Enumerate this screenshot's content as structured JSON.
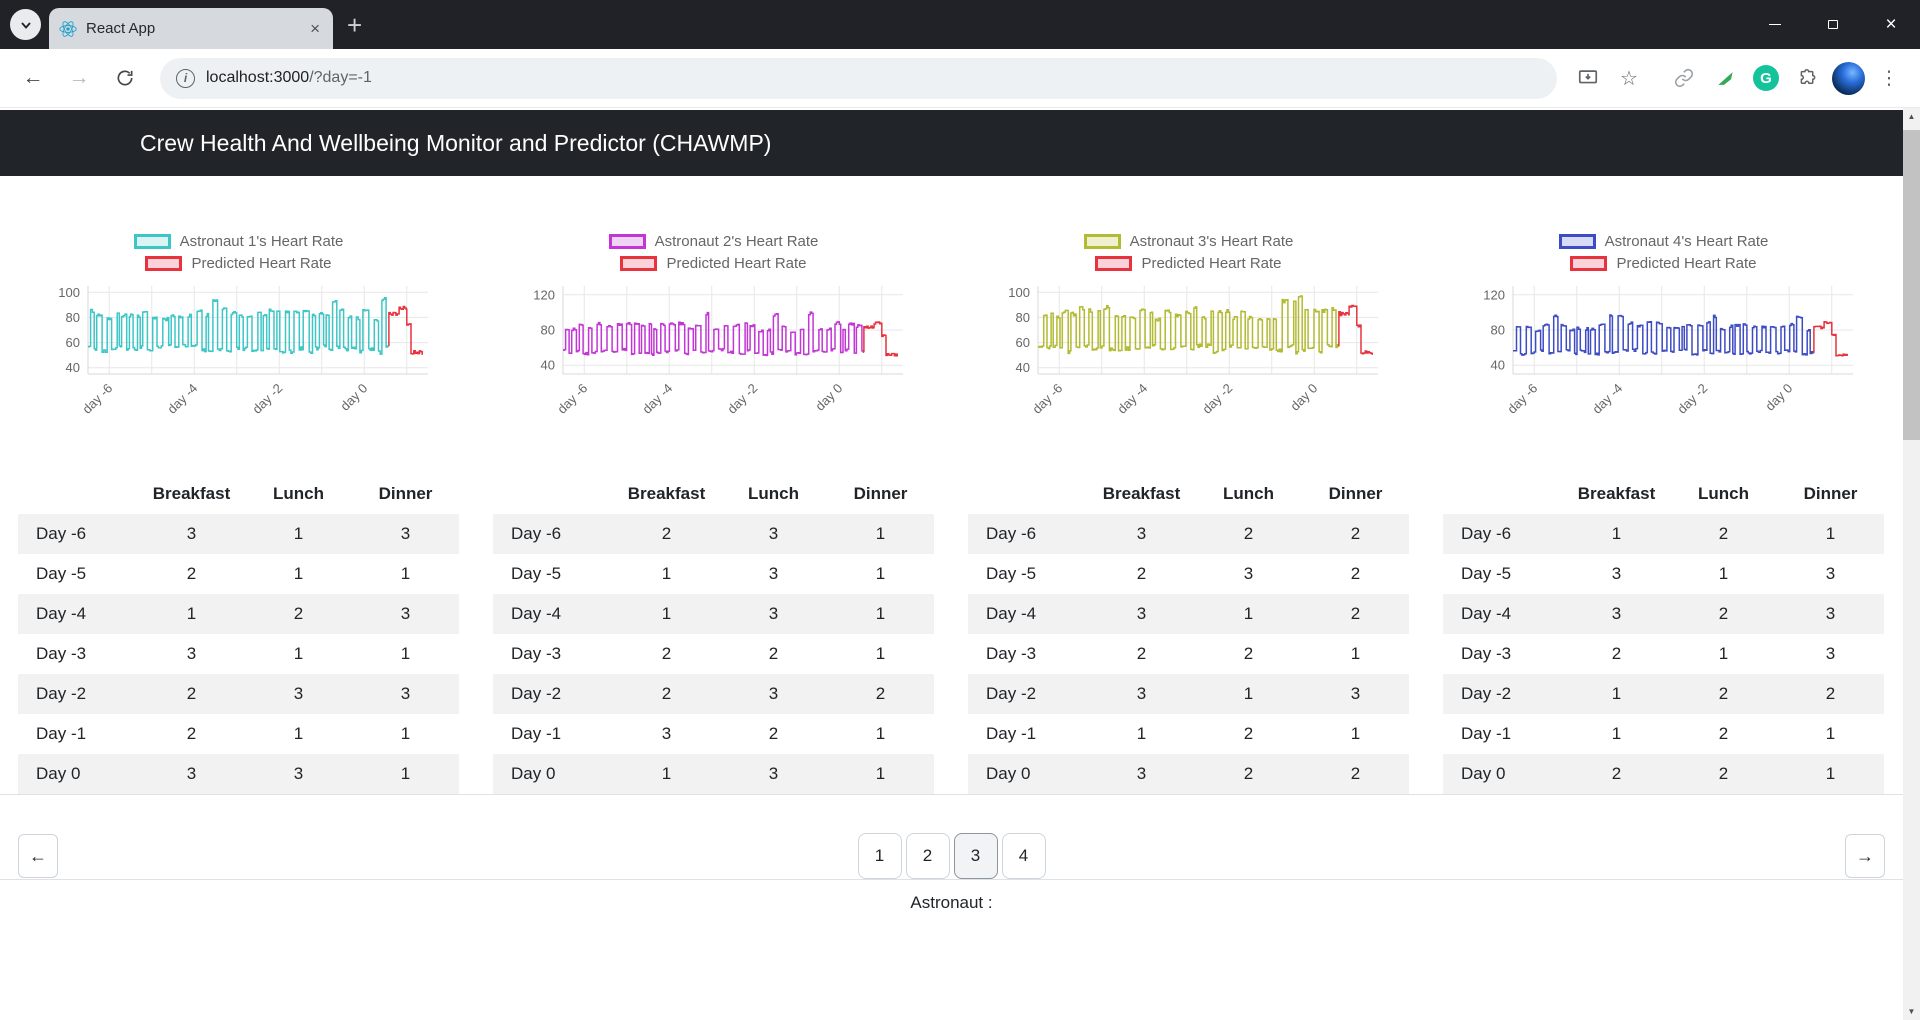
{
  "browser": {
    "tab_title": "React App",
    "url_host": "localhost:3000",
    "url_path": "/?day=-1",
    "icons": {
      "back": "←",
      "forward": "→",
      "new_tab": "+",
      "close_tab": "×",
      "close_window": "×",
      "info": "i",
      "star": "☆",
      "kebab": "⋮",
      "grammarly": "G"
    }
  },
  "header": {
    "title": "Crew Health And Wellbeing Monitor and Predictor (CHAWMP)"
  },
  "table": {
    "headers": [
      "Breakfast",
      "Lunch",
      "Dinner"
    ]
  },
  "chart_data": [
    {
      "type": "line",
      "series": [
        {
          "name": "Astronaut 1's Heart Rate",
          "color": "#3ec6c6",
          "fill": "#d9f4f2",
          "x_range": [
            -6.5,
            0.58
          ]
        },
        {
          "name": "Predicted Heart Rate",
          "color": "#e8323e",
          "fill": "#fad2da",
          "x_range": [
            0.58,
            1.38
          ]
        }
      ],
      "x_tick_labels": [
        "day -6",
        "day -4",
        "day -2",
        "day 0"
      ],
      "x_tick_days": [
        -6,
        -4,
        -2,
        0
      ],
      "x_range": [
        -6.5,
        1.5
      ],
      "y_ticks": [
        100,
        80,
        60,
        40
      ],
      "ylim": [
        35,
        105
      ],
      "grid": true,
      "legend_position": "top",
      "waveform": {
        "rest_level": 55,
        "active_level": 81,
        "spike_level": 96,
        "seed": 101
      }
    },
    {
      "type": "line",
      "series": [
        {
          "name": "Astronaut 2's Heart Rate",
          "color": "#c136d4",
          "fill": "#f0d4f6",
          "x_range": [
            -6.5,
            0.58
          ]
        },
        {
          "name": "Predicted Heart Rate",
          "color": "#e8323e",
          "fill": "#fad2da",
          "x_range": [
            0.58,
            1.38
          ]
        }
      ],
      "x_tick_labels": [
        "day -6",
        "day -4",
        "day -2",
        "day 0"
      ],
      "x_tick_days": [
        -6,
        -4,
        -2,
        0
      ],
      "x_range": [
        -6.5,
        1.5
      ],
      "y_ticks": [
        120,
        80,
        40
      ],
      "ylim": [
        30,
        130
      ],
      "grid": true,
      "legend_position": "top",
      "waveform": {
        "rest_level": 55,
        "active_level": 81,
        "spike_level": 96,
        "seed": 202
      }
    },
    {
      "type": "line",
      "series": [
        {
          "name": "Astronaut 3's Heart Rate",
          "color": "#b3ba33",
          "fill": "#eef0cf",
          "x_range": [
            -6.5,
            0.58
          ]
        },
        {
          "name": "Predicted Heart Rate",
          "color": "#e8323e",
          "fill": "#fad2da",
          "x_range": [
            0.58,
            1.38
          ]
        }
      ],
      "x_tick_labels": [
        "day -6",
        "day -4",
        "day -2",
        "day 0"
      ],
      "x_tick_days": [
        -6,
        -4,
        -2,
        0
      ],
      "x_range": [
        -6.5,
        1.5
      ],
      "y_ticks": [
        100,
        80,
        60,
        40
      ],
      "ylim": [
        35,
        105
      ],
      "grid": true,
      "legend_position": "top",
      "waveform": {
        "rest_level": 55,
        "active_level": 81,
        "spike_level": 96,
        "seed": 303
      }
    },
    {
      "type": "line",
      "series": [
        {
          "name": "Astronaut 4's Heart Rate",
          "color": "#3d4cc4",
          "fill": "#d8dbf5",
          "x_range": [
            -6.5,
            0.58
          ]
        },
        {
          "name": "Predicted Heart Rate",
          "color": "#e8323e",
          "fill": "#fad2da",
          "x_range": [
            0.58,
            1.38
          ]
        }
      ],
      "x_tick_labels": [
        "day -6",
        "day -4",
        "day -2",
        "day 0"
      ],
      "x_tick_days": [
        -6,
        -4,
        -2,
        0
      ],
      "x_range": [
        -6.5,
        1.5
      ],
      "y_ticks": [
        120,
        80,
        40
      ],
      "ylim": [
        30,
        130
      ],
      "grid": true,
      "legend_position": "top",
      "waveform": {
        "rest_level": 55,
        "active_level": 81,
        "spike_level": 96,
        "seed": 404
      }
    }
  ],
  "astronauts": [
    {
      "rows": [
        {
          "day": "Day -6",
          "meals": [
            3,
            1,
            3
          ]
        },
        {
          "day": "Day -5",
          "meals": [
            2,
            1,
            1
          ]
        },
        {
          "day": "Day -4",
          "meals": [
            1,
            2,
            3
          ]
        },
        {
          "day": "Day -3",
          "meals": [
            3,
            1,
            1
          ]
        },
        {
          "day": "Day -2",
          "meals": [
            2,
            3,
            3
          ]
        },
        {
          "day": "Day -1",
          "meals": [
            2,
            1,
            1
          ]
        },
        {
          "day": "Day 0",
          "meals": [
            3,
            3,
            1
          ]
        }
      ]
    },
    {
      "rows": [
        {
          "day": "Day -6",
          "meals": [
            2,
            3,
            1
          ]
        },
        {
          "day": "Day -5",
          "meals": [
            1,
            3,
            1
          ]
        },
        {
          "day": "Day -4",
          "meals": [
            1,
            3,
            1
          ]
        },
        {
          "day": "Day -3",
          "meals": [
            2,
            2,
            1
          ]
        },
        {
          "day": "Day -2",
          "meals": [
            2,
            3,
            2
          ]
        },
        {
          "day": "Day -1",
          "meals": [
            3,
            2,
            1
          ]
        },
        {
          "day": "Day 0",
          "meals": [
            1,
            3,
            1
          ]
        }
      ]
    },
    {
      "rows": [
        {
          "day": "Day -6",
          "meals": [
            3,
            2,
            2
          ]
        },
        {
          "day": "Day -5",
          "meals": [
            2,
            3,
            2
          ]
        },
        {
          "day": "Day -4",
          "meals": [
            3,
            1,
            2
          ]
        },
        {
          "day": "Day -3",
          "meals": [
            2,
            2,
            1
          ]
        },
        {
          "day": "Day -2",
          "meals": [
            3,
            1,
            3
          ]
        },
        {
          "day": "Day -1",
          "meals": [
            1,
            2,
            1
          ]
        },
        {
          "day": "Day 0",
          "meals": [
            3,
            2,
            2
          ]
        }
      ]
    },
    {
      "rows": [
        {
          "day": "Day -6",
          "meals": [
            1,
            2,
            1
          ]
        },
        {
          "day": "Day -5",
          "meals": [
            3,
            1,
            3
          ]
        },
        {
          "day": "Day -4",
          "meals": [
            3,
            2,
            3
          ]
        },
        {
          "day": "Day -3",
          "meals": [
            2,
            1,
            3
          ]
        },
        {
          "day": "Day -2",
          "meals": [
            1,
            2,
            2
          ]
        },
        {
          "day": "Day -1",
          "meals": [
            1,
            2,
            1
          ]
        },
        {
          "day": "Day 0",
          "meals": [
            2,
            2,
            1
          ]
        }
      ]
    }
  ],
  "pagination": {
    "prev": "←",
    "next": "→",
    "pages": [
      "1",
      "2",
      "3",
      "4"
    ],
    "active": "3"
  },
  "footer": {
    "label": "Astronaut :"
  },
  "scrollbar": {
    "up": "▲",
    "down": "▼"
  }
}
